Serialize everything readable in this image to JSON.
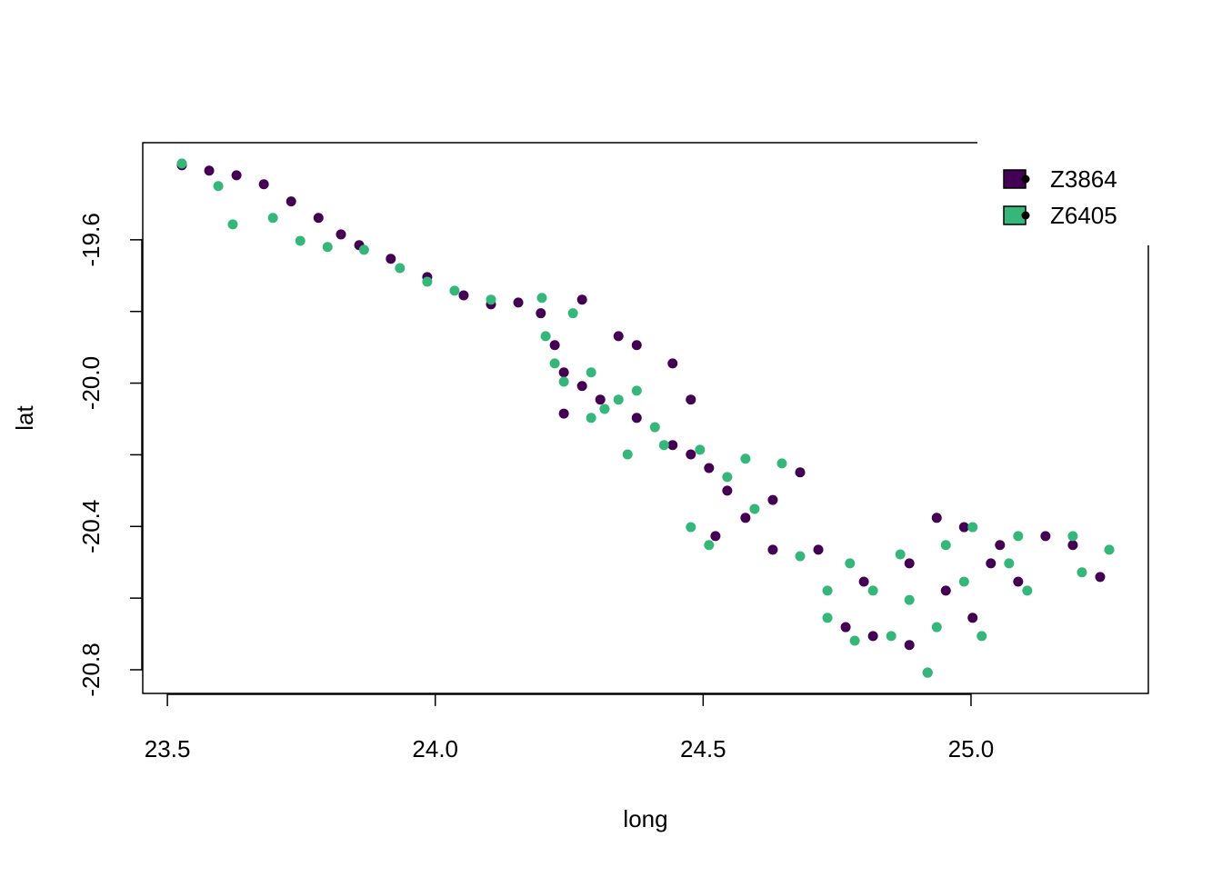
{
  "chart_data": {
    "type": "scatter",
    "x_label": "long",
    "y_label": "lat",
    "xlim": [
      23.454,
      25.331
    ],
    "ylim": [
      -20.866,
      -19.329
    ],
    "xticks": [
      23.5,
      {
        "value": 24,
        "label": "24.0"
      },
      24.5,
      {
        "value": 25,
        "label": "25.0"
      }
    ],
    "yticks": [
      -19.6,
      {
        "value": -19.8,
        "label": null
      },
      {
        "value": -20,
        "label": "-20.0"
      },
      {
        "value": -20.2,
        "label": null
      },
      -20.4,
      {
        "value": -20.6,
        "label": null
      },
      -20.8
    ],
    "legend": "topright",
    "series": [
      {
        "name": "Z3864",
        "color": "#440154",
        "x": [
          23.527,
          23.578,
          23.629,
          23.68,
          23.731,
          23.782,
          23.824,
          23.858,
          23.917,
          23.985,
          24.053,
          24.104,
          24.155,
          24.197,
          24.223,
          24.24,
          24.274,
          24.308,
          24.376,
          24.443,
          24.511,
          24.545,
          24.579,
          24.63,
          24.681,
          24.523,
          24.63,
          24.715,
          24.8,
          24.885,
          24.936,
          24.987,
          25.054,
          25.139,
          25.241,
          24.817,
          24.885,
          24.919,
          25.003,
          25.088,
          24.766,
          24.953,
          25.037,
          25.19,
          24.376,
          24.443,
          24.477,
          24.274,
          24.342,
          24.24,
          24.477
        ],
        "values": [
          -19.392,
          -19.407,
          -19.42,
          -19.445,
          -19.493,
          -19.539,
          -19.585,
          -19.615,
          -19.653,
          -19.704,
          -19.755,
          -19.78,
          -19.775,
          -19.805,
          -19.894,
          -19.97,
          -20.008,
          -20.046,
          -20.097,
          -20.173,
          -20.237,
          -20.3,
          -20.376,
          -20.326,
          -20.249,
          -20.427,
          -20.465,
          -20.465,
          -20.554,
          -20.503,
          -20.376,
          -20.402,
          -20.452,
          -20.427,
          -20.541,
          -20.706,
          -20.731,
          -20.808,
          -20.655,
          -20.554,
          -20.681,
          -20.579,
          -20.503,
          -20.452,
          -19.894,
          -19.945,
          -20.046,
          -19.767,
          -19.869,
          -20.085,
          -20.199
        ]
      },
      {
        "name": "Z6405",
        "color": "#35b779",
        "x": [
          23.527,
          23.595,
          23.622,
          23.697,
          23.748,
          23.799,
          23.867,
          23.934,
          23.985,
          24.036,
          24.104,
          24.199,
          24.257,
          24.206,
          24.223,
          24.291,
          24.342,
          24.41,
          24.494,
          24.545,
          24.596,
          24.681,
          24.774,
          24.817,
          24.868,
          24.953,
          25.003,
          25.088,
          25.19,
          25.258,
          25.207,
          25.105,
          25.02,
          24.936,
          24.851,
          24.783,
          24.732,
          24.885,
          24.987,
          25.071,
          24.732,
          24.919,
          24.291,
          24.359,
          24.427,
          24.579,
          24.647,
          24.511,
          24.477,
          24.376,
          24.316,
          24.24
        ],
        "values": [
          -19.387,
          -19.45,
          -19.557,
          -19.539,
          -19.603,
          -19.62,
          -19.628,
          -19.679,
          -19.717,
          -19.742,
          -19.767,
          -19.762,
          -19.805,
          -19.869,
          -19.945,
          -19.97,
          -20.046,
          -20.123,
          -20.186,
          -20.262,
          -20.351,
          -20.483,
          -20.503,
          -20.579,
          -20.478,
          -20.452,
          -20.402,
          -20.427,
          -20.427,
          -20.465,
          -20.528,
          -20.579,
          -20.706,
          -20.681,
          -20.706,
          -20.719,
          -20.655,
          -20.605,
          -20.554,
          -20.503,
          -20.579,
          -20.808,
          -20.097,
          -20.199,
          -20.173,
          -20.211,
          -20.224,
          -20.452,
          -20.402,
          -20.021,
          -20.072,
          -19.996
        ]
      }
    ]
  }
}
